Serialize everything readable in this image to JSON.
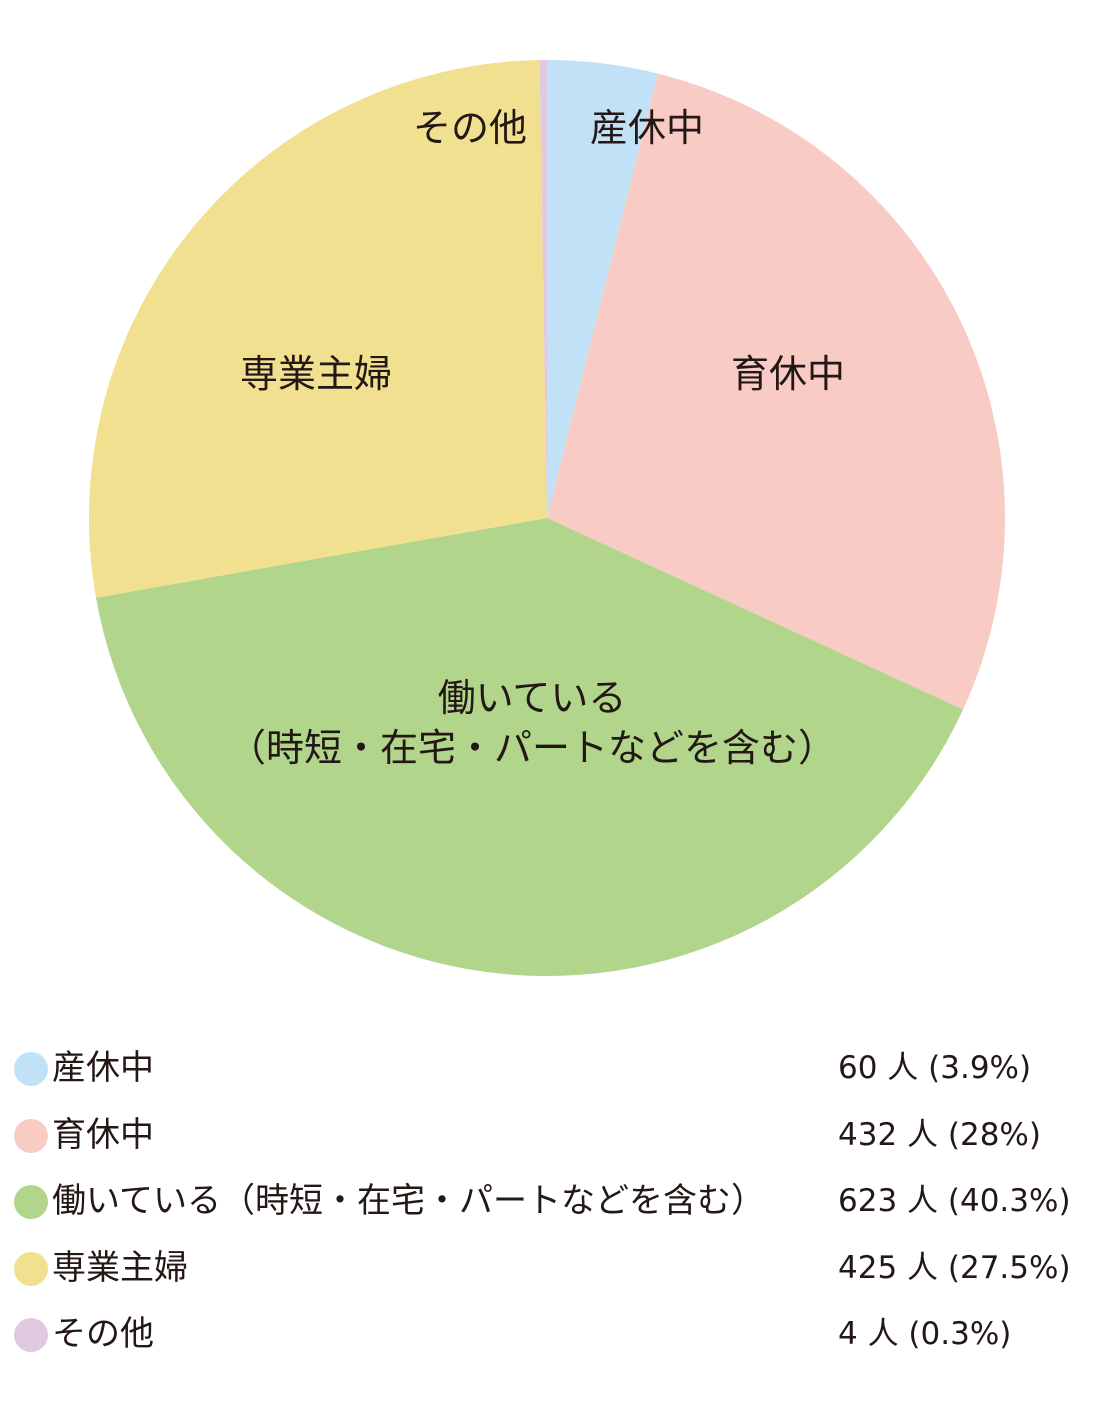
{
  "chart_data": {
    "type": "pie",
    "start_angle": "12 o'clock",
    "direction": "clockwise",
    "slices": [
      {
        "label": "産休中",
        "chart_label_lines": [
          "産休中"
        ],
        "value": 60,
        "percent": 3.9,
        "value_text": "60 人 (3.9%)",
        "color": "#c1e1f6"
      },
      {
        "label": "育休中",
        "chart_label_lines": [
          "育休中"
        ],
        "value": 432,
        "percent": 28,
        "value_text": "432 人 (28%)",
        "color": "#f8cbc4"
      },
      {
        "label": "働いている（時短・在宅・パートなどを含む）",
        "chart_label_lines": [
          "働いている",
          "（時短・在宅・パートなどを含む）"
        ],
        "value": 623,
        "percent": 40.3,
        "value_text": "623 人 (40.3%)",
        "color": "#b0d58b"
      },
      {
        "label": "専業主婦",
        "chart_label_lines": [
          "専業主婦"
        ],
        "value": 425,
        "percent": 27.5,
        "value_text": "425 人 (27.5%)",
        "color": "#f1e08f"
      },
      {
        "label": "その他",
        "chart_label_lines": [
          "その他"
        ],
        "value": 4,
        "percent": 0.3,
        "value_text": "4 人 (0.3%)",
        "color": "#e1c9e2"
      }
    ]
  }
}
